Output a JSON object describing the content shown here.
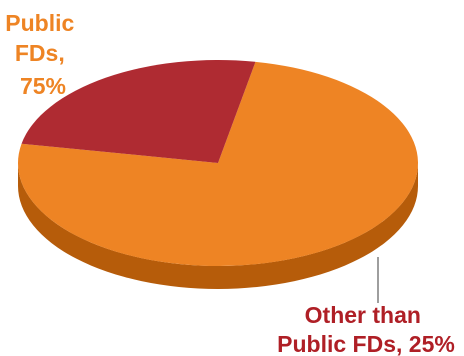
{
  "chart_data": {
    "type": "pie",
    "style": "3d",
    "slices": [
      {
        "label_lines": [
          "Public",
          "FDs,",
          "75%"
        ],
        "value": 75,
        "top_color": "#EE8424",
        "side_color": "#B65C0A",
        "label_color": "#EE8424"
      },
      {
        "label_lines": [
          "Other than",
          "Public FDs, 25%"
        ],
        "value": 25,
        "top_color": "#AF2B32",
        "side_color": "#7E1117",
        "label_color": "#AF1F26"
      }
    ],
    "leader_line_color": "#9E9E9E"
  }
}
